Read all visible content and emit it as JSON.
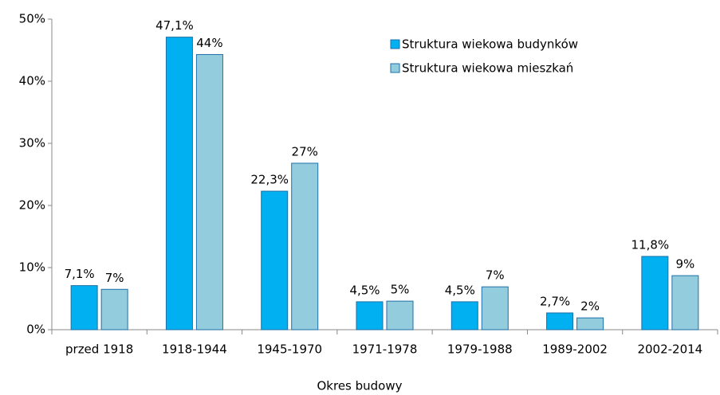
{
  "chart_data": {
    "type": "bar",
    "x_label": "Okres budowy",
    "categories": [
      "przed 1918",
      "1918-1944",
      "1945-1970",
      "1971-1978",
      "1979-1988",
      "1989-2002",
      "2002-2014"
    ],
    "series": [
      {
        "name": "Struktura wiekowa budynków",
        "color": "#00b0f0",
        "values": [
          7.1,
          47.1,
          22.3,
          4.5,
          4.5,
          2.7,
          11.8
        ],
        "value_labels": [
          "7,1%",
          "47,1%",
          "22,3%",
          "4,5%",
          "4,5%",
          "2,7%",
          "11,8%"
        ]
      },
      {
        "name": "Struktura wiekowa mieszkań",
        "color": "#93cddd",
        "values": [
          6.5,
          44.3,
          26.8,
          4.6,
          6.9,
          1.9,
          8.7
        ],
        "value_labels": [
          "7%",
          "44%",
          "27%",
          "5%",
          "7%",
          "2%",
          "9%"
        ]
      }
    ],
    "ylim": [
      0,
      50
    ],
    "yticks": [
      {
        "value": 0,
        "label": "0%"
      },
      {
        "value": 10,
        "label": "10%"
      },
      {
        "value": 20,
        "label": "20%"
      },
      {
        "value": 30,
        "label": "30%"
      },
      {
        "value": 40,
        "label": "40%"
      },
      {
        "value": 50,
        "label": "50%"
      }
    ],
    "legend": "top-right"
  }
}
